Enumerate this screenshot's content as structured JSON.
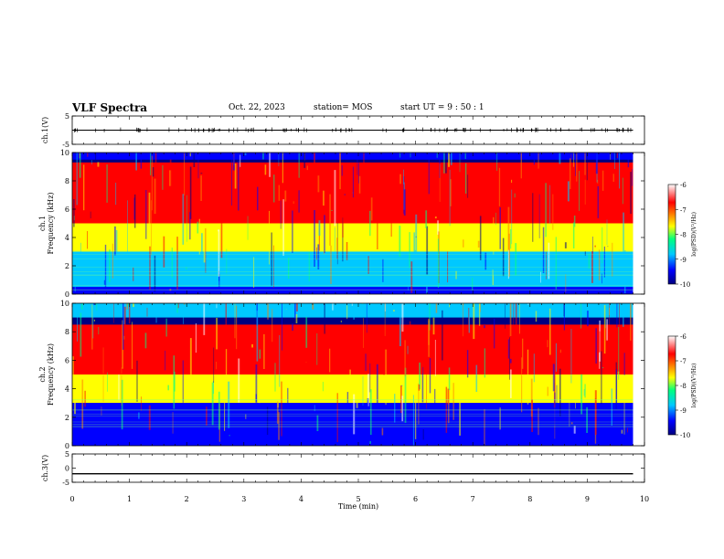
{
  "header": {
    "title": "VLF Spectra",
    "date": "Oct. 22, 2023",
    "station": "station= MOS",
    "start_ut": "start  UT =  9 : 50 : 1"
  },
  "colors": {
    "colormap": [
      "#000080",
      "#0000ff",
      "#00c8ff",
      "#00ff80",
      "#ffff00",
      "#ff8000",
      "#ff0000",
      "#ffffff"
    ],
    "trace": "#000000"
  },
  "chart_data": [
    {
      "type": "line",
      "name": "ch1-waveform",
      "ylabel": "ch.1(V)",
      "ylim": [
        -5,
        5
      ],
      "yticks": [
        "5",
        "-5"
      ],
      "x": [
        0,
        1,
        2,
        3,
        4,
        5,
        6,
        7,
        8,
        9,
        9.8
      ],
      "values": [
        0,
        0,
        0,
        0,
        0,
        0,
        0,
        0,
        0,
        0,
        0
      ]
    },
    {
      "type": "heatmap",
      "name": "ch1-spectrogram",
      "ylabel": "ch.1\nFrequency (kHz)",
      "ylim": [
        0,
        10
      ],
      "yticks": [
        "0",
        "2",
        "4",
        "6",
        "8",
        "10"
      ],
      "xlim": [
        0,
        9.8
      ],
      "colorbar": {
        "label": "log(PSD)(V²/Hz)",
        "range": [
          -10,
          -6
        ],
        "ticks": [
          "-6",
          "-7",
          "-8",
          "-9",
          "-10"
        ]
      },
      "bands": [
        {
          "freq_from": 9.5,
          "freq_to": 10.0,
          "level": -9.3
        },
        {
          "freq_from": 5.0,
          "freq_to": 9.3,
          "level": -6.5
        },
        {
          "freq_from": 3.0,
          "freq_to": 5.0,
          "level": -7.8
        },
        {
          "freq_from": 0.5,
          "freq_to": 3.0,
          "level": -8.7
        },
        {
          "freq_from": 0.0,
          "freq_to": 0.5,
          "level": -9.6
        }
      ]
    },
    {
      "type": "heatmap",
      "name": "ch2-spectrogram",
      "ylabel": "ch.2\nFrequency (kHz)",
      "ylim": [
        0,
        10
      ],
      "yticks": [
        "0",
        "2",
        "4",
        "6",
        "8",
        "10"
      ],
      "xlim": [
        0,
        9.8
      ],
      "colorbar": {
        "label": "log(PSD)(V²/Hz)",
        "range": [
          -10,
          -6
        ],
        "ticks": [
          "-6",
          "-7",
          "-8",
          "-9",
          "-10"
        ]
      },
      "bands": [
        {
          "freq_from": 9.0,
          "freq_to": 10.0,
          "level": -9.0
        },
        {
          "freq_from": 5.0,
          "freq_to": 8.5,
          "level": -6.4
        },
        {
          "freq_from": 3.0,
          "freq_to": 5.0,
          "level": -8.0
        },
        {
          "freq_from": 0.0,
          "freq_to": 3.0,
          "level": -9.7
        }
      ]
    },
    {
      "type": "line",
      "name": "ch3-waveform",
      "ylabel": "ch.3(V)",
      "ylim": [
        -5,
        5
      ],
      "yticks": [
        "5",
        "0",
        "-5"
      ],
      "x": [
        0,
        1,
        2,
        3,
        4,
        5,
        6,
        7,
        8,
        9,
        9.8
      ],
      "values": [
        -2,
        -2,
        -2,
        -2,
        -2,
        -2,
        -2,
        -2,
        -2,
        -2,
        -2
      ]
    }
  ],
  "x_axis": {
    "label": "Time (min)",
    "ticks": [
      "0",
      "1",
      "2",
      "3",
      "4",
      "5",
      "6",
      "7",
      "8",
      "9",
      "10"
    ],
    "xlim": [
      0,
      10
    ]
  }
}
